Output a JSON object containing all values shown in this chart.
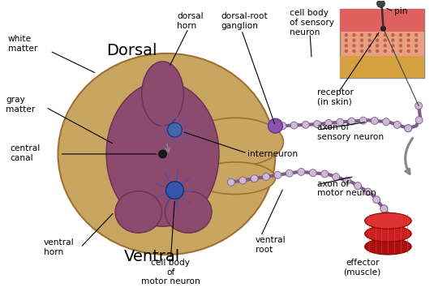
{
  "background_color": "#ffffff",
  "labels": {
    "white_matter": "white\nmatter",
    "dorsal_horn": "dorsal\nhorn",
    "dorsal_root_ganglion": "dorsal-root\nganglion",
    "cell_body_sensory": "cell body\nof sensory\nneuron",
    "pin": "pin",
    "receptor": "receptor\n(in skin)",
    "axon_sensory": "axon of\nsensory neuron",
    "gray_matter": "gray\nmatter",
    "dorsal": "Dorsal",
    "central_canal": "central\ncanal",
    "interneuron": "interneuron",
    "axon_motor": "axon of\nmotor neuron",
    "ventral_horn": "ventral\nhorn",
    "ventral": "Ventral",
    "cell_body_motor": "cell body\nof\nmotor neuron",
    "ventral_root": "ventral\nroot",
    "effector": "effector\n(muscle)"
  },
  "colors": {
    "spinal_cord_outer": "#c8a560",
    "spinal_cord_edge": "#a07030",
    "gray_matter": "#8b4a6e",
    "gray_matter_edge": "#6a3050",
    "text_labels": "#000000",
    "neuron_blue": "#4466aa",
    "neuron_blue_edge": "#223388",
    "motor_blue": "#3355aa",
    "motor_blue_edge": "#113366",
    "ganglion_purple": "#8855aa",
    "ganglion_edge": "#6633aa",
    "axon_color": "#7a5c8a",
    "axon_light": "#d0b8d8",
    "canal_color": "#1a1a1a",
    "skin_base": "#e8a080",
    "skin_pink": "#e06060",
    "skin_yellow": "#d4a040",
    "skin_dot": "#c06050",
    "pin_color": "#333333",
    "pin_head": "#444444",
    "muscle_dark": "#aa1010",
    "muscle_mid": "#cc2020",
    "muscle_light": "#dd3030",
    "muscle_edge": "#880000",
    "muscle_stripe": "#ee4040",
    "arrow_gray": "#888888",
    "dendrite_inter": "#5566aa",
    "dendrite_motor": "#4455aa"
  }
}
